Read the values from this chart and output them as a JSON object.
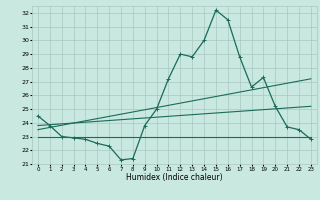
{
  "title": "",
  "xlabel": "Humidex (Indice chaleur)",
  "ylabel": "",
  "background_color": "#c8e8e0",
  "grid_color": "#a8c8c0",
  "line_color": "#1a6b5a",
  "ylim": [
    21,
    32.5
  ],
  "xlim": [
    -0.5,
    23.5
  ],
  "yticks": [
    21,
    22,
    23,
    24,
    25,
    26,
    27,
    28,
    29,
    30,
    31,
    32
  ],
  "xticks": [
    0,
    1,
    2,
    3,
    4,
    5,
    6,
    7,
    8,
    9,
    10,
    11,
    12,
    13,
    14,
    15,
    16,
    17,
    18,
    19,
    20,
    21,
    22,
    23
  ],
  "main_x": [
    0,
    1,
    2,
    3,
    4,
    5,
    6,
    7,
    8,
    9,
    10,
    11,
    12,
    13,
    14,
    15,
    16,
    17,
    18,
    19,
    20,
    21,
    22,
    23
  ],
  "main_y": [
    24.5,
    23.8,
    23.0,
    22.9,
    22.8,
    22.5,
    22.3,
    21.3,
    21.4,
    23.8,
    25.0,
    27.2,
    29.0,
    28.8,
    30.0,
    32.2,
    31.5,
    28.8,
    26.6,
    27.3,
    25.2,
    23.7,
    23.5,
    22.8
  ],
  "line2_x": [
    0,
    23
  ],
  "line2_y": [
    23.0,
    23.0
  ],
  "line3_x": [
    0,
    23
  ],
  "line3_y": [
    23.5,
    27.2
  ],
  "line4_x": [
    0,
    23
  ],
  "line4_y": [
    23.8,
    25.2
  ]
}
